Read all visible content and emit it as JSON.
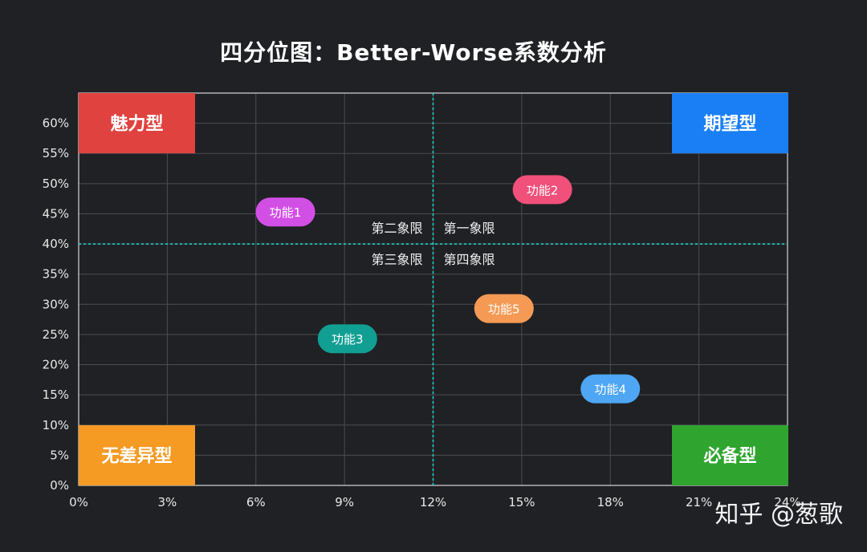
{
  "chart_data": {
    "type": "scatter",
    "title": "四分位图：Better-Worse系数分析",
    "xlim": [
      0,
      24
    ],
    "ylim": [
      0,
      65
    ],
    "x_ticks": [
      0,
      3,
      6,
      9,
      12,
      15,
      18,
      21,
      24
    ],
    "y_ticks": [
      0,
      5,
      10,
      15,
      20,
      25,
      30,
      35,
      40,
      45,
      50,
      55,
      60
    ],
    "tick_suffix": "%",
    "grid": true,
    "divider": {
      "x": 12,
      "y": 40,
      "color": "#19d3c5"
    },
    "quadrant_labels": {
      "top_left": "第二象限",
      "top_right": "第一象限",
      "bottom_left": "第三象限",
      "bottom_right": "第四象限"
    },
    "corner_labels": [
      {
        "text": "魅力型",
        "position": "top-left",
        "color": "#e0423f"
      },
      {
        "text": "期望型",
        "position": "top-right",
        "color": "#1a7ff5"
      },
      {
        "text": "无差异型",
        "position": "bottom-left",
        "color": "#f59a23"
      },
      {
        "text": "必备型",
        "position": "bottom-right",
        "color": "#2fa52f"
      }
    ],
    "points": [
      {
        "label": "功能1",
        "x": 7,
        "y": 45.3,
        "color": "#d24fe6"
      },
      {
        "label": "功能2",
        "x": 15.7,
        "y": 49,
        "color": "#f0507a"
      },
      {
        "label": "功能3",
        "x": 9.1,
        "y": 24.3,
        "color": "#119e93"
      },
      {
        "label": "功能4",
        "x": 18,
        "y": 16,
        "color": "#4ea6f5"
      },
      {
        "label": "功能5",
        "x": 14.4,
        "y": 29.3,
        "color": "#f59a55"
      }
    ]
  },
  "watermark": "知乎 @葱歌"
}
